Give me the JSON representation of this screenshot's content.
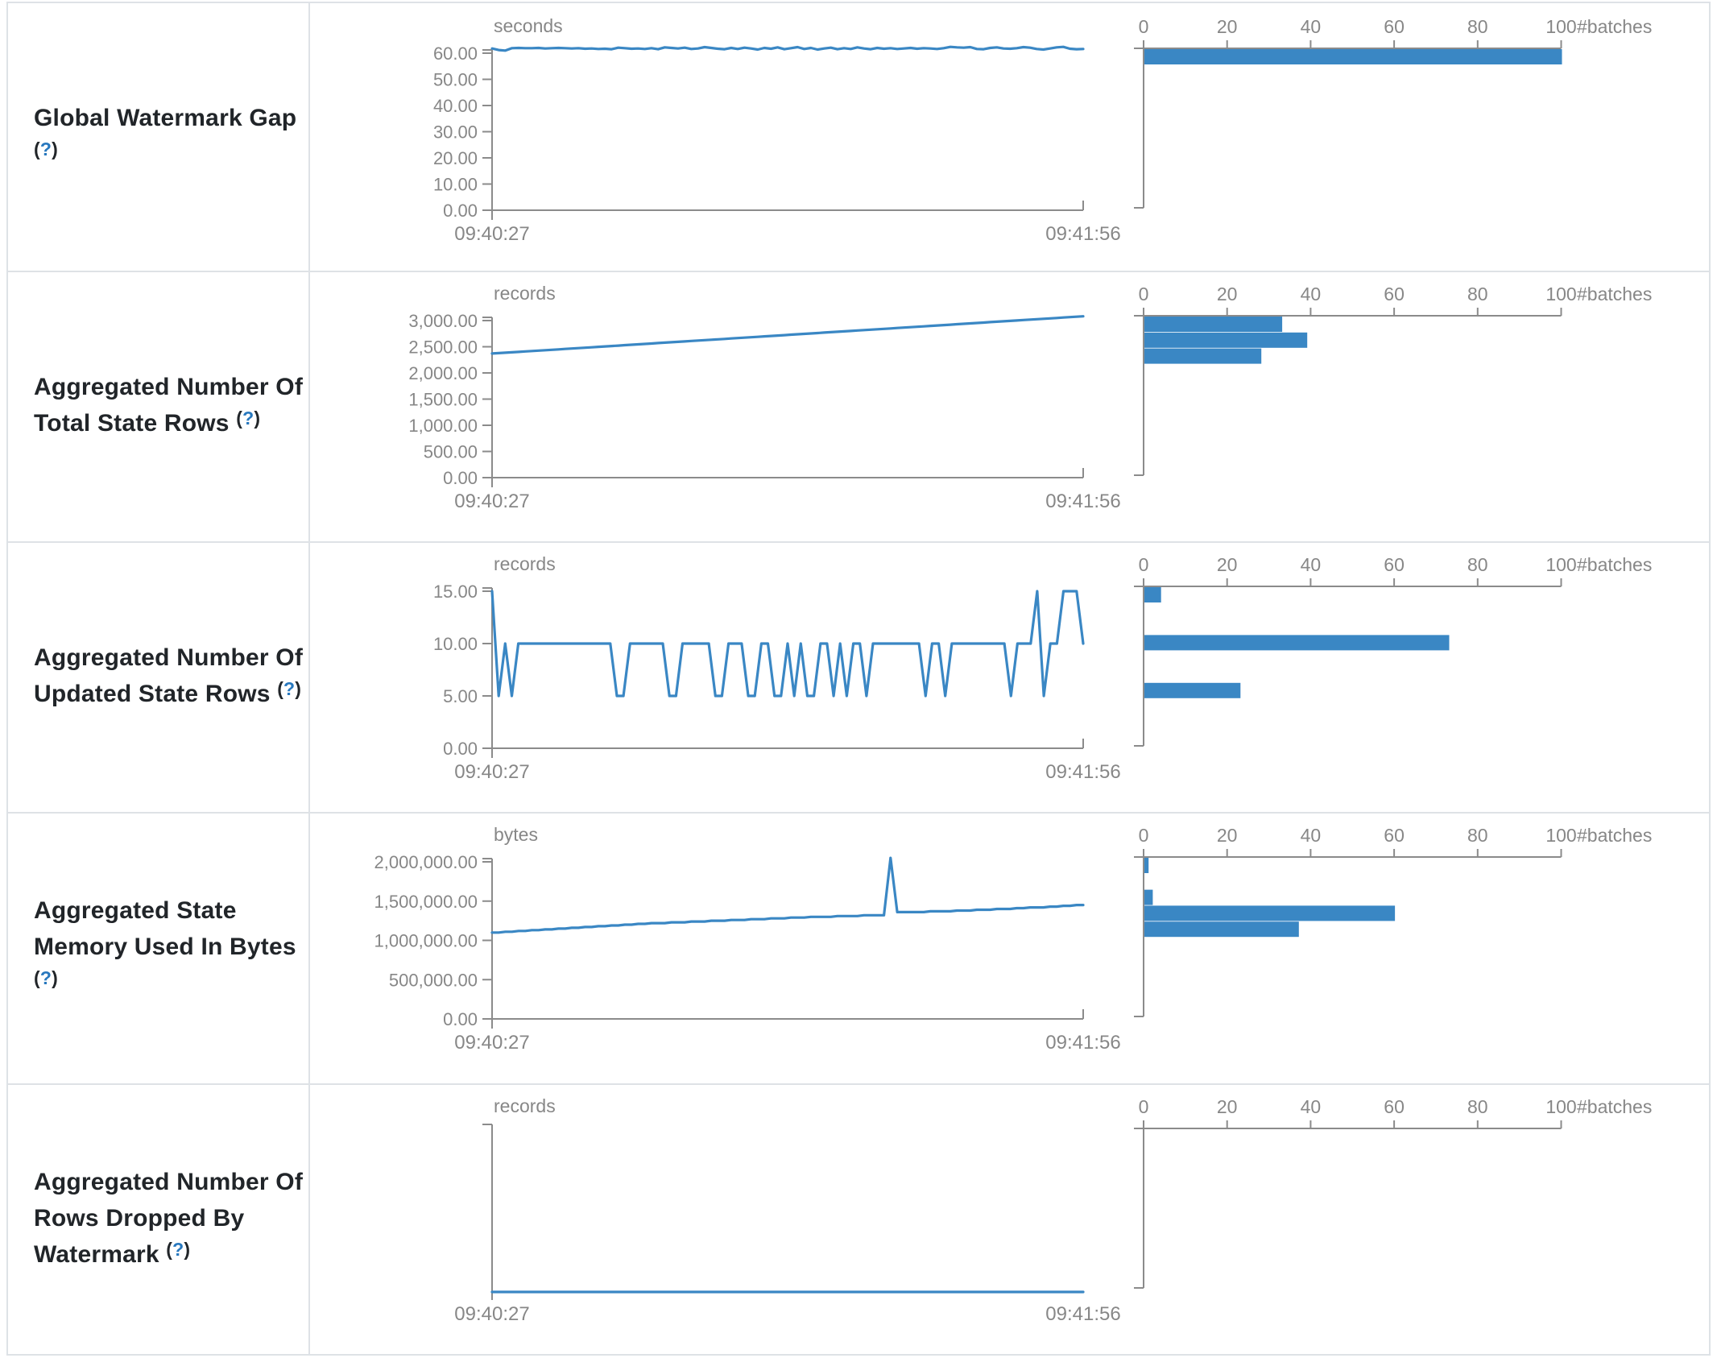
{
  "palette": {
    "accent_blue": "#3a87c4",
    "axis_line": "#8b8b8b",
    "axis_text": "#878787",
    "label_text": "#212529",
    "help_blue": "#2878be",
    "table_border": "#dee2e6",
    "background": "#ffffff"
  },
  "histogram_axis": {
    "tick_labels": [
      "0",
      "20",
      "40",
      "60",
      "80",
      "100"
    ],
    "unit": "#batches"
  },
  "metrics_table": {
    "rows": [
      {
        "id": "global-watermark-gap",
        "label": {
          "text": "Global Watermark Gap\n",
          "help_open": "(",
          "help_q": "?",
          "help_close": ")"
        },
        "timeline": {
          "type": "line",
          "unit": "seconds",
          "x_start_label": "09:40:27",
          "x_end_label": "09:41:56",
          "y_tick_labels": [
            "60.00",
            "50.00",
            "40.00",
            "30.00",
            "20.00",
            "10.00",
            "0.00"
          ],
          "y_top_value": 60,
          "values": [
            61.8,
            61.2,
            61.0,
            61.9,
            62.0,
            61.9,
            61.9,
            62.0,
            61.8,
            61.9,
            62.0,
            61.9,
            61.8,
            61.9,
            61.7,
            61.8,
            61.6,
            61.7,
            61.5,
            62.1,
            61.9,
            61.7,
            61.8,
            61.6,
            61.9,
            61.5,
            62.2,
            62.0,
            61.8,
            62.1,
            61.6,
            61.8,
            62.3,
            62.0,
            61.7,
            61.5,
            62.0,
            61.6,
            62.1,
            61.8,
            61.4,
            62.0,
            61.7,
            62.2,
            61.5,
            61.9,
            62.3,
            61.6,
            62.0,
            61.4,
            61.8,
            62.1,
            61.5,
            61.9,
            61.6,
            62.2,
            61.8,
            61.5,
            62.0,
            61.7,
            61.9,
            61.6,
            61.8,
            62.0,
            61.7,
            61.9,
            61.8,
            61.6,
            61.9,
            62.4,
            62.2,
            62.1,
            62.3,
            61.6,
            61.5,
            62.0,
            62.2,
            61.8,
            61.7,
            61.9,
            62.3,
            62.1,
            61.6,
            61.4,
            61.8,
            62.2,
            62.4,
            61.7,
            61.5,
            61.6
          ]
        },
        "histogram": {
          "type": "bar",
          "bars": [
            {
              "bin": 0,
              "count": 100
            }
          ]
        }
      },
      {
        "id": "aggregated-total-state-rows",
        "label": {
          "text": "Aggregated Number Of\nTotal State Rows ",
          "help_open": "(",
          "help_q": "?",
          "help_close": ")"
        },
        "timeline": {
          "type": "line",
          "unit": "records",
          "x_start_label": "09:40:27",
          "x_end_label": "09:41:56",
          "y_tick_labels": [
            "3,000.00",
            "2,500.00",
            "2,000.00",
            "1,500.00",
            "1,000.00",
            "500.00",
            "0.00"
          ],
          "y_top_value": 3000,
          "values": [
            2370,
            2378,
            2386,
            2394,
            2402,
            2410,
            2418,
            2426,
            2434,
            2442,
            2450,
            2458,
            2466,
            2474,
            2482,
            2490,
            2498,
            2506,
            2514,
            2522,
            2530,
            2538,
            2546,
            2554,
            2562,
            2570,
            2578,
            2586,
            2594,
            2602,
            2610,
            2618,
            2626,
            2634,
            2642,
            2650,
            2658,
            2666,
            2674,
            2682,
            2690,
            2698,
            2706,
            2714,
            2722,
            2730,
            2738,
            2746,
            2754,
            2762,
            2770,
            2778,
            2786,
            2794,
            2802,
            2810,
            2818,
            2826,
            2834,
            2842,
            2850,
            2858,
            2866,
            2874,
            2882,
            2890,
            2898,
            2906,
            2914,
            2922,
            2930,
            2938,
            2946,
            2954,
            2962,
            2970,
            2978,
            2986,
            2994,
            3002,
            3010,
            3018,
            3026,
            3034,
            3042,
            3050,
            3058,
            3066,
            3074,
            3082
          ]
        },
        "histogram": {
          "type": "bar",
          "bars": [
            {
              "bin": 0,
              "count": 33
            },
            {
              "bin": 1,
              "count": 39
            },
            {
              "bin": 2,
              "count": 28
            }
          ]
        }
      },
      {
        "id": "aggregated-updated-state-rows",
        "label": {
          "text": "Aggregated Number Of\nUpdated State Rows ",
          "help_open": "(",
          "help_q": "?",
          "help_close": ")"
        },
        "timeline": {
          "type": "line",
          "unit": "records",
          "x_start_label": "09:40:27",
          "x_end_label": "09:41:56",
          "y_tick_labels": [
            "15.00",
            "10.00",
            "5.00",
            "0.00"
          ],
          "y_top_value": 15,
          "values": [
            15,
            5,
            10,
            5,
            10,
            10,
            10,
            10,
            10,
            10,
            10,
            10,
            10,
            10,
            10,
            10,
            10,
            10,
            10,
            5,
            5,
            10,
            10,
            10,
            10,
            10,
            10,
            5,
            5,
            10,
            10,
            10,
            10,
            10,
            5,
            5,
            10,
            10,
            10,
            5,
            5,
            10,
            10,
            5,
            5,
            10,
            5,
            10,
            5,
            5,
            10,
            10,
            5,
            10,
            5,
            10,
            10,
            5,
            10,
            10,
            10,
            10,
            10,
            10,
            10,
            10,
            5,
            10,
            10,
            5,
            10,
            10,
            10,
            10,
            10,
            10,
            10,
            10,
            10,
            5,
            10,
            10,
            10,
            15,
            5,
            10,
            10,
            15,
            15,
            15,
            10
          ]
        },
        "histogram": {
          "type": "bar",
          "bars": [
            {
              "bin": 0,
              "count": 4
            },
            {
              "bin": 3,
              "count": 73
            },
            {
              "bin": 6,
              "count": 23
            }
          ]
        }
      },
      {
        "id": "aggregated-state-memory-used",
        "label": {
          "text": "Aggregated State\nMemory Used In Bytes\n",
          "help_open": "(",
          "help_q": "?",
          "help_close": ")"
        },
        "timeline": {
          "type": "line",
          "unit": "bytes",
          "x_start_label": "09:40:27",
          "x_end_label": "09:41:56",
          "y_tick_labels": [
            "2,000,000.00",
            "1,500,000.00",
            "1,000,000.00",
            "500,000.00",
            "0.00"
          ],
          "y_top_value": 2000000,
          "values": [
            1100000,
            1100000,
            1110000,
            1110000,
            1120000,
            1120000,
            1130000,
            1130000,
            1140000,
            1140000,
            1150000,
            1150000,
            1160000,
            1160000,
            1170000,
            1170000,
            1180000,
            1180000,
            1190000,
            1190000,
            1200000,
            1200000,
            1210000,
            1210000,
            1220000,
            1220000,
            1220000,
            1230000,
            1230000,
            1230000,
            1240000,
            1240000,
            1240000,
            1250000,
            1250000,
            1250000,
            1260000,
            1260000,
            1260000,
            1270000,
            1270000,
            1270000,
            1280000,
            1280000,
            1280000,
            1290000,
            1290000,
            1290000,
            1300000,
            1300000,
            1300000,
            1300000,
            1310000,
            1310000,
            1310000,
            1310000,
            1320000,
            1320000,
            1320000,
            1320000,
            2050000,
            1360000,
            1360000,
            1360000,
            1360000,
            1360000,
            1370000,
            1370000,
            1370000,
            1370000,
            1380000,
            1380000,
            1380000,
            1390000,
            1390000,
            1390000,
            1400000,
            1400000,
            1400000,
            1410000,
            1410000,
            1420000,
            1420000,
            1420000,
            1430000,
            1430000,
            1440000,
            1440000,
            1450000,
            1450000
          ]
        },
        "histogram": {
          "type": "bar",
          "bars": [
            {
              "bin": 0,
              "count": 1
            },
            {
              "bin": 2,
              "count": 2
            },
            {
              "bin": 3,
              "count": 60
            },
            {
              "bin": 4,
              "count": 37
            }
          ]
        }
      },
      {
        "id": "aggregated-rows-dropped-by-watermark",
        "label": {
          "text": "Aggregated Number Of\nRows Dropped By\nWatermark ",
          "help_open": "(",
          "help_q": "?",
          "help_close": ")"
        },
        "timeline": {
          "type": "line",
          "unit": "records",
          "x_start_label": "09:40:27",
          "x_end_label": "09:41:56",
          "y_tick_labels": [],
          "y_top_value": null,
          "values": [
            0,
            0
          ]
        },
        "histogram": {
          "type": "bar",
          "bars": []
        }
      }
    ]
  }
}
